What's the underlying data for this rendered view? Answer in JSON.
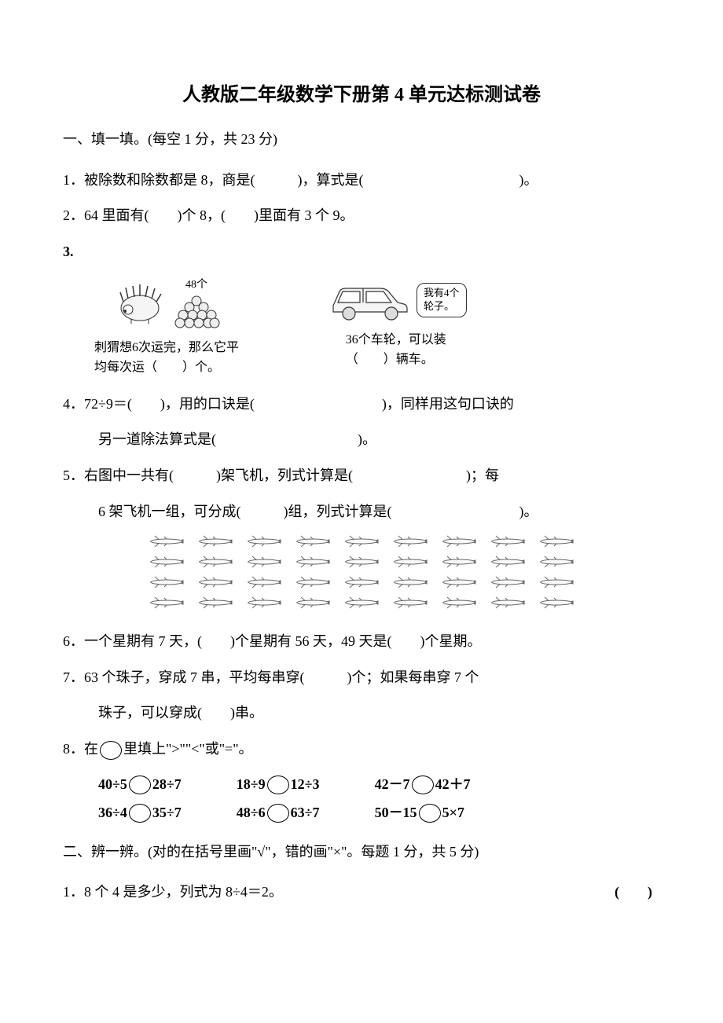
{
  "title": "人教版二年级数学下册第 4 单元达标测试卷",
  "section1": {
    "header": "一、填一填。(每空 1 分，共 23 分)",
    "q1": "1．被除数和除数都是 8，商是(　　　)，算式是(　　　　　　　　　　　)。",
    "q2": "2．64 里面有(　　)个 8，(　　)里面有 3 个 9。",
    "q3": {
      "num": "3.",
      "label48": "48个",
      "hedgehog_line1": "刺猬想6次运完，那么它平",
      "hedgehog_line2": "均每次运（　　）个。",
      "car_speech1": "我有4个",
      "car_speech2": "轮子。",
      "car_line1": "36个车轮，可以装",
      "car_line2": "（　　）辆车。"
    },
    "q4_a": "4．72÷9＝(　　)，用的口诀是(　　　　　　　　　)，同样用这句口诀的",
    "q4_b": "另一道除法算式是(　　　　　　　　　　)。",
    "q5_a": "5．右图中一共有(　　　)架飞机，列式计算是(　　　　　　　　)；每",
    "q5_b": "6 架飞机一组，可分成(　　　)组，列式计算是(　　　　　　　　　)。",
    "q6": "6．一个星期有 7 天，(　　)个星期有 56 天，49 天是(　　)个星期。",
    "q7_a": "7．63 个珠子，穿成 7 串，平均每串穿(　　　)个；如果每串穿 7 个",
    "q7_b": "珠子，可以穿成(　　)串。",
    "q8_intro_a": "8．在",
    "q8_intro_b": "里填上\">\"\"<\"或\"=\"。",
    "q8r1c1a": "40÷5",
    "q8r1c1b": "28÷7",
    "q8r1c2a": "18÷9",
    "q8r1c2b": "12÷3",
    "q8r1c3a": "42－7",
    "q8r1c3b": "42＋7",
    "q8r2c1a": "36÷4",
    "q8r2c1b": "35÷7",
    "q8r2c2a": "48÷6",
    "q8r2c2b": "63÷7",
    "q8r2c3a": "50－15",
    "q8r2c3b": "5×7"
  },
  "section2": {
    "header": "二、辨一辨。(对的在括号里画\"√\"，错的画\"×\"。每题 1 分，共 5 分)",
    "q1_text": "1．8 个 4 是多少，列式为 8÷4＝2。",
    "q1_paren": "(　　)"
  },
  "planes": {
    "rows": 4,
    "cols": 9
  },
  "colors": {
    "text": "#000000",
    "bg": "#ffffff",
    "illustration_stroke": "#333333",
    "illustration_fill": "#f5f5f5",
    "plane_stroke": "#666666"
  }
}
